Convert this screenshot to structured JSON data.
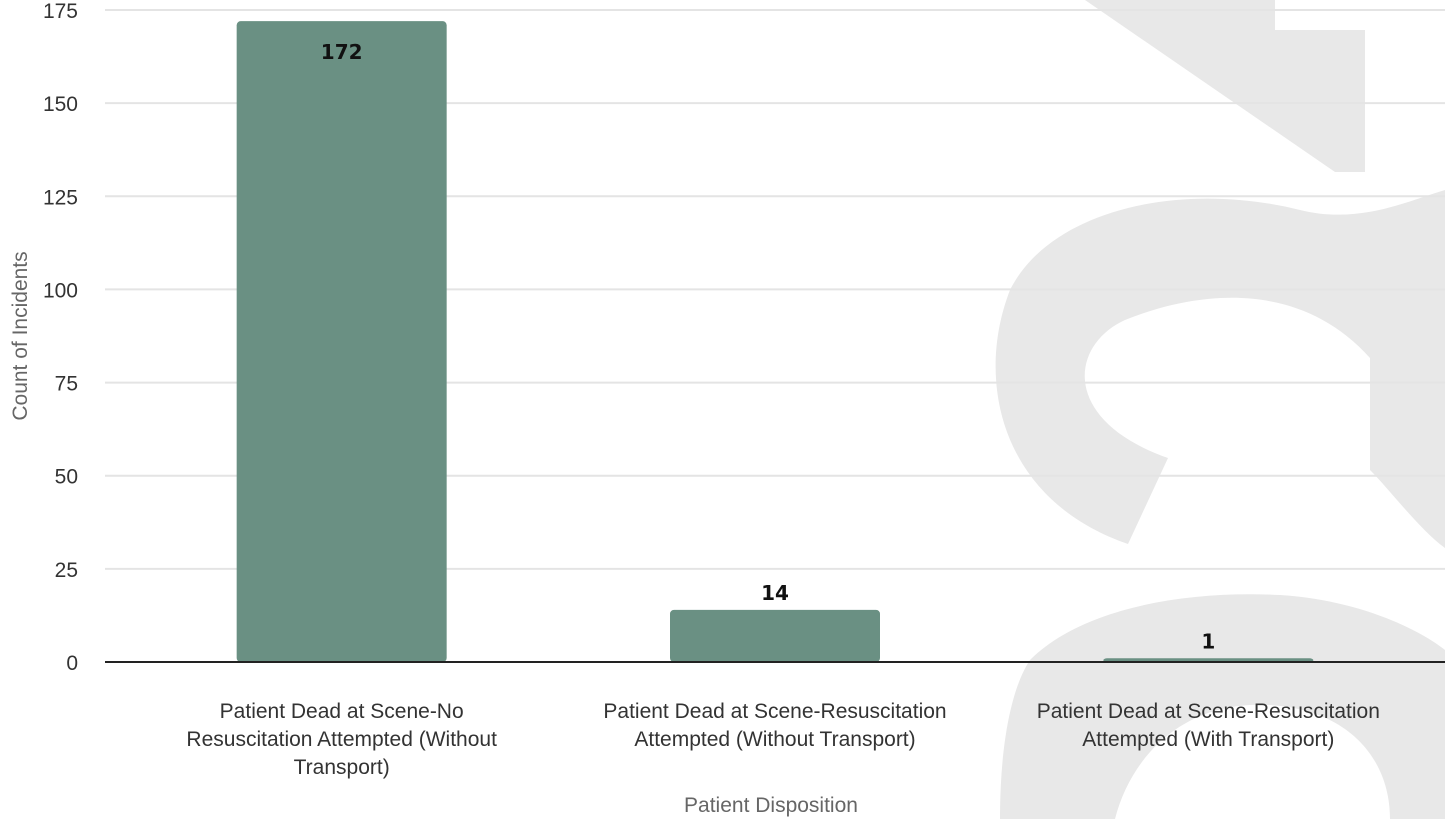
{
  "chart_data": {
    "type": "bar",
    "categories": [
      "Patient Dead at Scene-No Resuscitation Attempted (Without Transport)",
      "Patient Dead at Scene-Resuscitation Attempted (Without Transport)",
      "Patient Dead at Scene-Resuscitation Attempted (With Transport)"
    ],
    "category_lines": [
      [
        "Patient Dead at Scene-No",
        "Resuscitation Attempted (Without",
        "Transport)"
      ],
      [
        "Patient Dead at Scene-Resuscitation",
        "Attempted (Without Transport)"
      ],
      [
        "Patient Dead at Scene-Resuscitation",
        "Attempted (With Transport)"
      ]
    ],
    "values": [
      172,
      14,
      1
    ],
    "data_labels": [
      "172",
      "14",
      "1"
    ],
    "title": "",
    "xlabel": "Patient Disposition",
    "ylabel": "Count of Incidents",
    "ylim": [
      0,
      175
    ],
    "yticks": [
      0,
      25,
      50,
      75,
      100,
      125,
      150,
      175
    ],
    "grid": true,
    "legend": "none",
    "colors": {
      "bar": "#6a9083",
      "grid": "#e4e4e4",
      "baseline": "#222222",
      "watermark": "#e8e8e8"
    }
  }
}
